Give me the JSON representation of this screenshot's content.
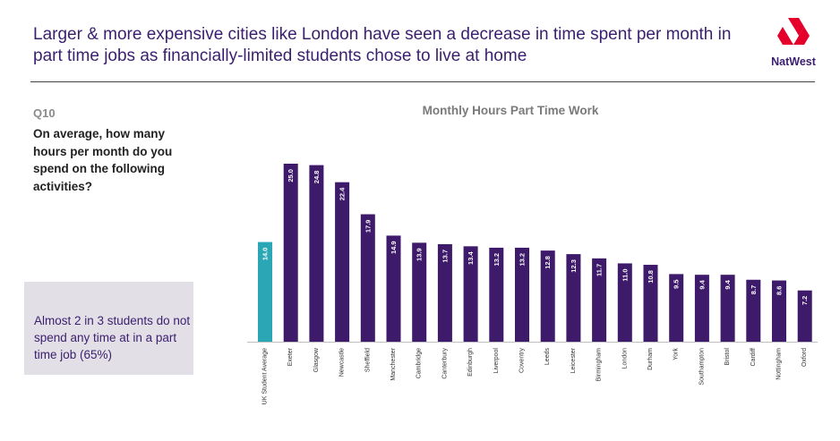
{
  "headline": "Larger & more expensive cities like London have seen a decrease in time spent per month in part time jobs as financially-limited students chose to live at home",
  "brand": {
    "name": "NatWest",
    "logo_icon": "natwest-logo-icon",
    "color": "#e4002b"
  },
  "question": {
    "number": "Q10",
    "text": "On average, how many hours per month do you spend on the following activities?"
  },
  "callout": {
    "text": "Almost 2 in 3 students do not spend any time at in a part time job (65%)"
  },
  "colors": {
    "bar": "#3e1a6b",
    "highlight": "#2aa6b4",
    "text_purple": "#3a1f6e"
  },
  "chart_data": {
    "type": "bar",
    "title": "Monthly Hours Part Time Work",
    "categories": [
      "UK Student Average",
      "Exeter",
      "Glasgow",
      "Newcastle",
      "Sheffield",
      "Manchester",
      "Cambridge",
      "Canterbury",
      "Edinburgh",
      "Liverpool",
      "Coventry",
      "Leeds",
      "Leicester",
      "Birmingham",
      "London",
      "Durham",
      "York",
      "Southampton",
      "Bristol",
      "Cardiff",
      "Nottingham",
      "Oxford"
    ],
    "values": [
      14.0,
      25.0,
      24.8,
      22.4,
      17.9,
      14.9,
      13.9,
      13.7,
      13.4,
      13.2,
      13.2,
      12.8,
      12.3,
      11.7,
      11.0,
      10.8,
      9.5,
      9.4,
      9.4,
      8.7,
      8.6,
      7.2
    ],
    "value_labels": [
      "14.0",
      "25.0",
      "24.8",
      "22.4",
      "17.9",
      "14.9",
      "13.9",
      "13.7",
      "13.4",
      "13.2",
      "13.2",
      "12.8",
      "12.3",
      "11.7",
      "11.0",
      "10.8",
      "9.5",
      "9.4",
      "9.4",
      "8.7",
      "8.6",
      "7.2"
    ],
    "highlighted_category": "UK Student Average",
    "xlabel": "",
    "ylabel": "",
    "ylim": [
      0,
      25
    ],
    "grid": false,
    "legend": "none"
  }
}
